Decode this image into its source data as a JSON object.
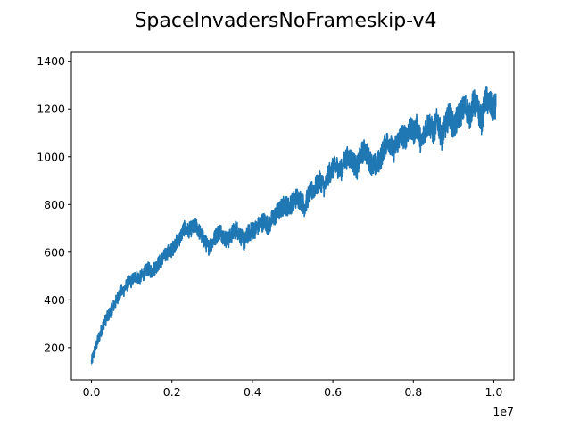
{
  "chart_data": {
    "type": "line",
    "title": "SpaceInvadersNoFrameskip-v4",
    "xlabel": "",
    "ylabel": "",
    "x_offset_label": "1e7",
    "xlim": [
      -0.05,
      1.05
    ],
    "ylim": [
      65,
      1440
    ],
    "x_ticks": [
      0.0,
      0.2,
      0.4,
      0.6,
      0.8,
      1.0
    ],
    "x_tick_labels": [
      "0.0",
      "0.2",
      "0.4",
      "0.6",
      "0.8",
      "1.0"
    ],
    "y_ticks": [
      200,
      400,
      600,
      800,
      1000,
      1200,
      1400
    ],
    "y_tick_labels": [
      "200",
      "400",
      "600",
      "800",
      "1000",
      "1200",
      "1400"
    ],
    "grid": false,
    "legend": "none",
    "series": [
      {
        "color": "#1f77b4",
        "x": [
          0.0,
          0.01,
          0.02,
          0.03,
          0.04,
          0.05,
          0.06,
          0.07,
          0.08,
          0.09,
          0.1,
          0.11,
          0.12,
          0.13,
          0.14,
          0.15,
          0.16,
          0.17,
          0.18,
          0.19,
          0.2,
          0.21,
          0.22,
          0.23,
          0.24,
          0.25,
          0.26,
          0.27,
          0.28,
          0.29,
          0.3,
          0.31,
          0.32,
          0.33,
          0.34,
          0.35,
          0.36,
          0.37,
          0.38,
          0.39,
          0.4,
          0.41,
          0.42,
          0.43,
          0.44,
          0.45,
          0.46,
          0.47,
          0.48,
          0.49,
          0.5,
          0.51,
          0.52,
          0.53,
          0.54,
          0.55,
          0.56,
          0.57,
          0.58,
          0.59,
          0.6,
          0.61,
          0.62,
          0.63,
          0.64,
          0.65,
          0.66,
          0.67,
          0.68,
          0.69,
          0.7,
          0.71,
          0.72,
          0.73,
          0.74,
          0.75,
          0.76,
          0.77,
          0.78,
          0.79,
          0.8,
          0.81,
          0.82,
          0.83,
          0.84,
          0.85,
          0.86,
          0.87,
          0.88,
          0.89,
          0.9,
          0.91,
          0.92,
          0.93,
          0.94,
          0.95,
          0.96,
          0.97,
          0.98,
          0.99,
          1.0,
          1.005
        ],
        "values": [
          140,
          200,
          250,
          300,
          330,
          360,
          390,
          430,
          440,
          470,
          480,
          500,
          490,
          510,
          530,
          520,
          540,
          560,
          580,
          600,
          610,
          640,
          660,
          700,
          690,
          700,
          710,
          680,
          650,
          620,
          640,
          670,
          690,
          660,
          650,
          680,
          700,
          670,
          640,
          680,
          690,
          700,
          720,
          730,
          710,
          740,
          760,
          780,
          800,
          790,
          810,
          830,
          820,
          790,
          840,
          860,
          880,
          900,
          870,
          930,
          950,
          960,
          940,
          990,
          1000,
          980,
          950,
          1010,
          1030,
          990,
          960,
          970,
          1000,
          1050,
          1070,
          1020,
          1060,
          1090,
          1080,
          1120,
          1100,
          1130,
          1050,
          1120,
          1140,
          1100,
          1160,
          1080,
          1130,
          1180,
          1120,
          1160,
          1190,
          1210,
          1170,
          1230,
          1200,
          1150,
          1240,
          1220,
          1200,
          1210
        ]
      }
    ]
  }
}
